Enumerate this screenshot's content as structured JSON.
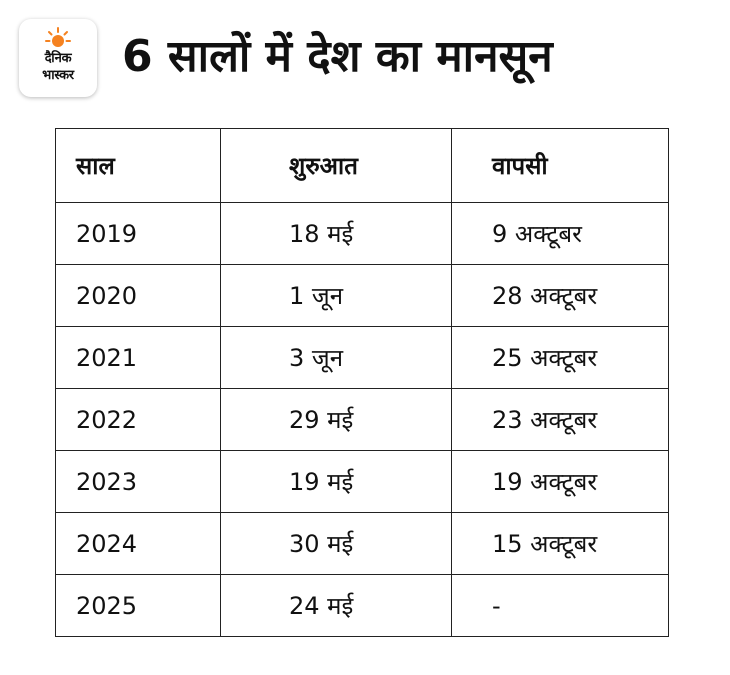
{
  "logo": {
    "line1": "दैनिक",
    "line2": "भास्कर",
    "accent_color": "#f58220"
  },
  "page_title": "6 सालों में देश का मानसून",
  "table": {
    "headers": [
      "साल",
      "शुरुआत",
      "वापसी"
    ],
    "rows": [
      [
        "2019",
        "18 मई",
        "9 अक्टूबर"
      ],
      [
        "2020",
        "1 जून",
        "28 अक्टूबर"
      ],
      [
        "2021",
        "3 जून",
        "25 अक्टूबर"
      ],
      [
        "2022",
        "29 मई",
        "23 अक्टूबर"
      ],
      [
        "2023",
        "19 मई",
        "19 अक्टूबर"
      ],
      [
        "2024",
        "30 मई",
        "15 अक्टूबर"
      ],
      [
        "2025",
        "24 मई",
        "-"
      ]
    ]
  }
}
